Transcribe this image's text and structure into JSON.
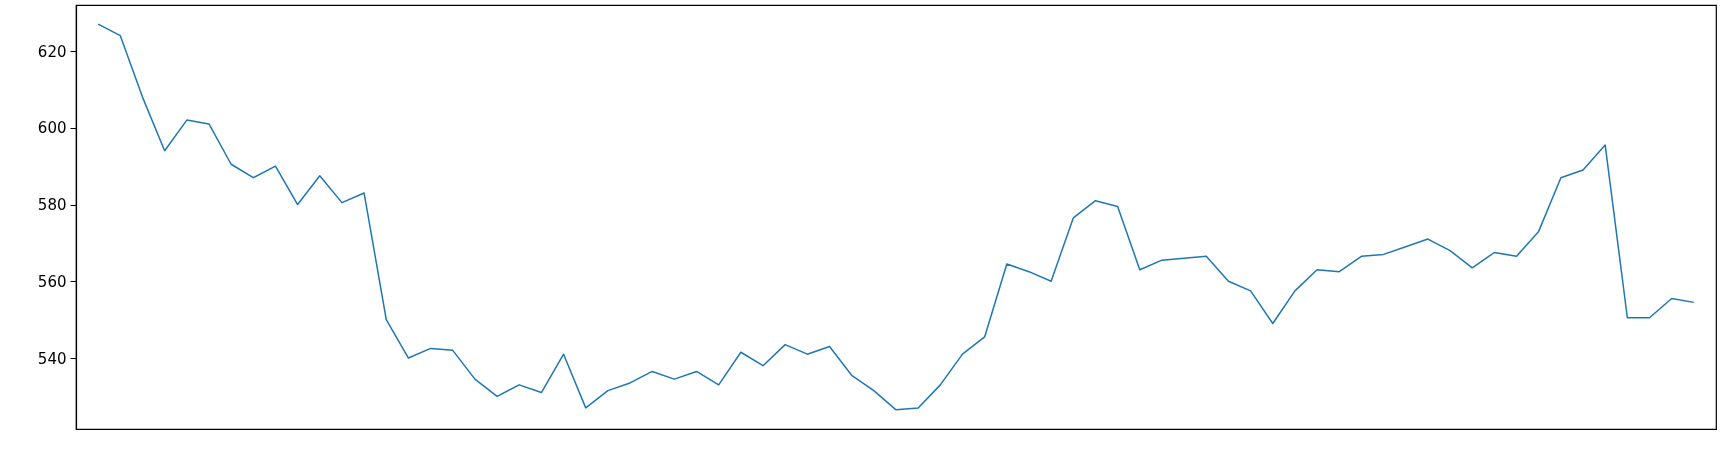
{
  "chart_data": {
    "type": "line",
    "categories": [
      null,
      null,
      null,
      null,
      null,
      null,
      null,
      null,
      null,
      null,
      null,
      null,
      null,
      null,
      null,
      null,
      null,
      null,
      null,
      null,
      null,
      null,
      null,
      null,
      null,
      null,
      null,
      null,
      null,
      null,
      null,
      null,
      null,
      null,
      null,
      null,
      null,
      null,
      null,
      null,
      null,
      null,
      null,
      null,
      null,
      null,
      null,
      null,
      null,
      null,
      null,
      null,
      null,
      null,
      null,
      null,
      null,
      null,
      null,
      null,
      null,
      null,
      null,
      null,
      null,
      null,
      null,
      null,
      null,
      null,
      null,
      null,
      null
    ],
    "series": [
      {
        "color": "#1f77b4",
        "values": [
          627,
          624,
          608,
          594,
          602,
          601,
          590.5,
          587,
          590,
          580,
          587.5,
          580.5,
          583,
          550,
          540,
          542.5,
          542,
          534.5,
          530,
          533,
          531,
          541,
          527,
          531.5,
          533.5,
          536.5,
          534.5,
          536.5,
          533,
          541.5,
          538,
          543.5,
          541,
          543,
          535.5,
          531.5,
          526.5,
          527,
          533,
          541,
          545.5,
          564.5,
          562.5,
          560,
          576.5,
          581,
          579.5,
          563,
          565.5,
          566,
          566.5,
          560,
          557.5,
          549,
          557.5,
          563,
          562.5,
          566.5,
          567,
          569,
          571,
          568,
          563.5,
          567.5,
          566.5,
          573,
          587,
          589,
          595.5,
          550.5,
          550.5,
          555.5,
          554.5
        ]
      }
    ],
    "ylim": [
      521.5,
      632
    ],
    "yticks": [
      540,
      560,
      580,
      600,
      620
    ],
    "tick_labels": "y"
  }
}
